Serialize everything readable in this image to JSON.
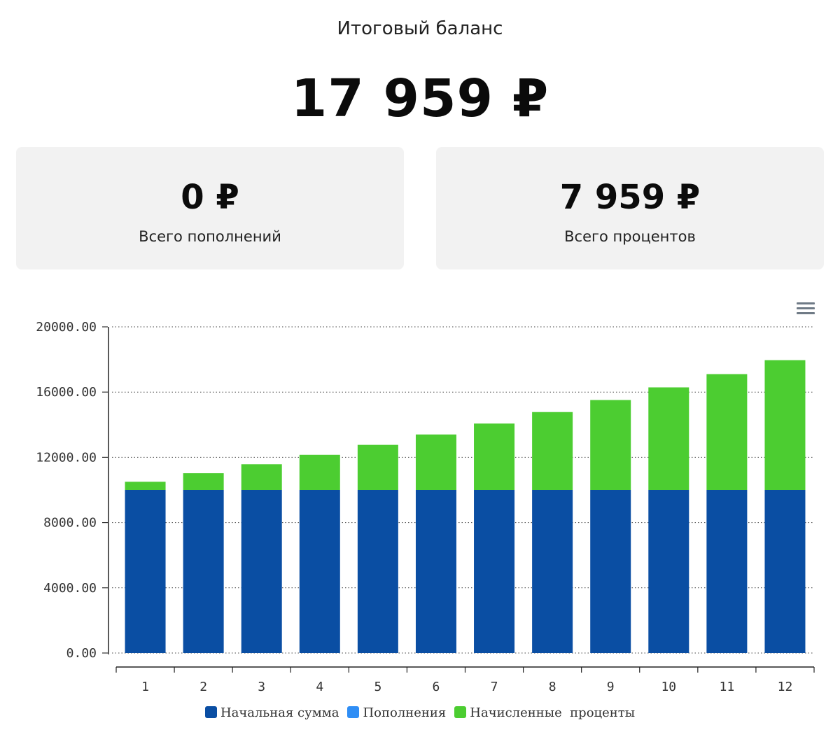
{
  "summary": {
    "balance_label": "Итоговый баланс",
    "balance_value": "17 959 ₽",
    "deposits_value": "0 ₽",
    "deposits_label": "Всего пополнений",
    "interest_value": "7 959 ₽",
    "interest_label": "Всего процентов"
  },
  "toolbar": {
    "menu_icon": "hamburger-menu-icon"
  },
  "chart_data": {
    "type": "bar",
    "stacked": true,
    "categories": [
      "1",
      "2",
      "3",
      "4",
      "5",
      "6",
      "7",
      "8",
      "9",
      "10",
      "11",
      "12"
    ],
    "series": [
      {
        "name": "Начальная сумма",
        "color": "#0a4ea3",
        "values": [
          10000,
          10000,
          10000,
          10000,
          10000,
          10000,
          10000,
          10000,
          10000,
          10000,
          10000,
          10000
        ]
      },
      {
        "name": "Пополнения",
        "color": "#2f8ef5",
        "values": [
          0,
          0,
          0,
          0,
          0,
          0,
          0,
          0,
          0,
          0,
          0,
          0
        ]
      },
      {
        "name": "Начисленные  проценты",
        "color": "#4ccd31",
        "values": [
          500,
          1025,
          1576,
          2155,
          2763,
          3401,
          4071,
          4775,
          5513,
          6289,
          7103,
          7959
        ]
      }
    ],
    "yticks": [
      "0.00",
      "4000.00",
      "8000.00",
      "12000.00",
      "16000.00",
      "20000.00"
    ],
    "ylim": [
      0,
      20000
    ],
    "grid": true,
    "legend": "bottom"
  }
}
